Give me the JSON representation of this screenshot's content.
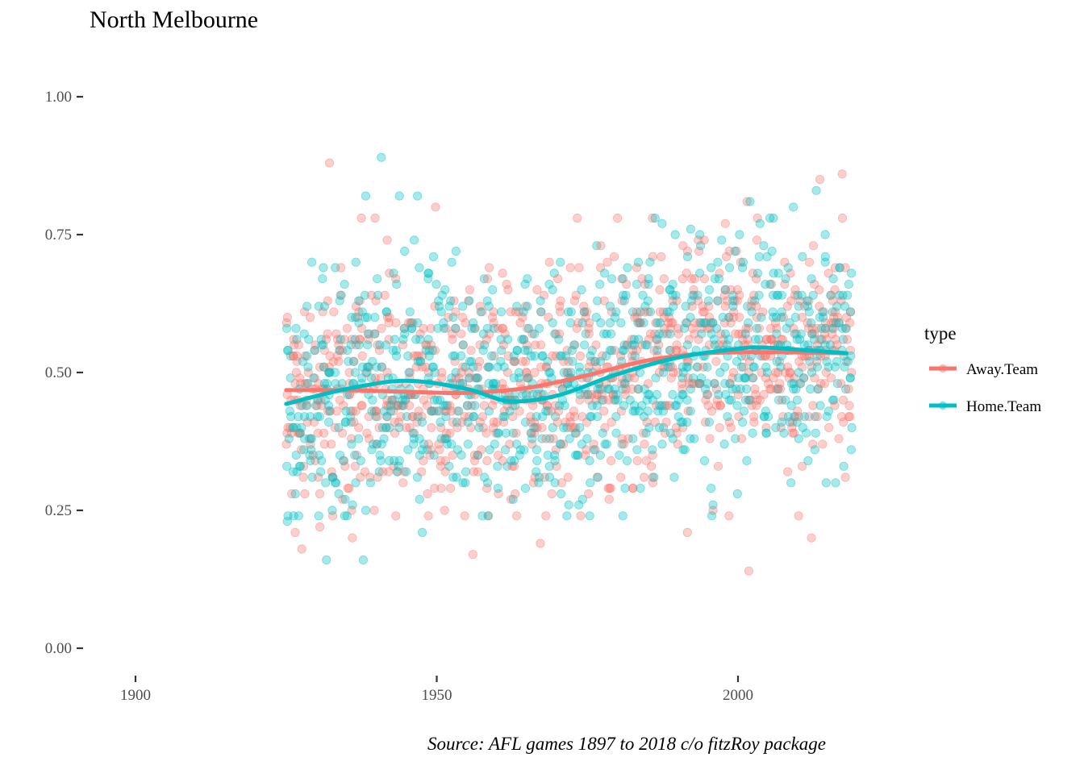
{
  "title": "North Melbourne",
  "caption": "Source: AFL games 1897 to 2018 c/o fitzRoy package",
  "chart_data": {
    "type": "scatter",
    "title": "North Melbourne",
    "xlabel": "",
    "ylabel": "",
    "xlim": [
      1890,
      2040
    ],
    "ylim": [
      -0.05,
      1.05
    ],
    "x_ticks": [
      1900,
      1950,
      2000
    ],
    "x_tick_labels": [
      "1900",
      "1950",
      "2000"
    ],
    "y_ticks": [
      0,
      0.25,
      0.5,
      0.75,
      1
    ],
    "y_tick_labels": [
      "0.00",
      "0.25",
      "0.50",
      "0.75",
      "1.00"
    ],
    "grid": false,
    "legend": {
      "title": "type",
      "position": "right"
    },
    "point_alpha": 0.35,
    "series": [
      {
        "name": "Away.Team",
        "color": "#F8766D",
        "x_range": [
          1925,
          2018
        ],
        "points_per_year": 10,
        "approx_points": [
          [
            1932.2,
            0.88
          ],
          [
            1937.5,
            0.78
          ],
          [
            1949.8,
            0.8
          ],
          [
            2001.5,
            0.81
          ],
          [
            2013.6,
            0.85
          ],
          [
            2017.3,
            0.86
          ],
          [
            2001.8,
            0.14
          ],
          [
            1956.0,
            0.17
          ],
          [
            1926.5,
            0.21
          ],
          [
            1927.6,
            0.18
          ],
          [
            1967.2,
            0.19
          ],
          [
            1991.6,
            0.21
          ],
          [
            2012.2,
            0.2
          ],
          [
            1930.6,
            0.22
          ],
          [
            1936.0,
            0.2
          ]
        ],
        "trend": {
          "x": [
            1925,
            1935,
            1945,
            1955,
            1965,
            1975,
            1985,
            1995,
            2005,
            2018
          ],
          "y": [
            0.468,
            0.468,
            0.465,
            0.463,
            0.472,
            0.495,
            0.522,
            0.535,
            0.537,
            0.535
          ]
        }
      },
      {
        "name": "Home.Team",
        "color": "#00BFC4",
        "x_range": [
          1925,
          2018
        ],
        "points_per_year": 10,
        "approx_points": [
          [
            1940.8,
            0.89
          ],
          [
            1938.2,
            0.82
          ],
          [
            1943.8,
            0.82
          ],
          [
            1946.8,
            0.82
          ],
          [
            2013.0,
            0.83
          ],
          [
            2002.0,
            0.81
          ],
          [
            2009.2,
            0.8
          ],
          [
            1931.7,
            0.16
          ],
          [
            1937.8,
            0.16
          ],
          [
            1947.6,
            0.21
          ],
          [
            1975.4,
            0.24
          ],
          [
            1925.2,
            0.23
          ],
          [
            2008.8,
            0.3
          ],
          [
            1987.4,
            0.77
          ],
          [
            1985.4,
            0.7
          ]
        ],
        "trend": {
          "x": [
            1925,
            1935,
            1945,
            1955,
            1962,
            1970,
            1980,
            1990,
            2000,
            2005,
            2018
          ],
          "y": [
            0.443,
            0.47,
            0.485,
            0.47,
            0.448,
            0.458,
            0.497,
            0.527,
            0.543,
            0.545,
            0.535
          ]
        }
      }
    ]
  }
}
